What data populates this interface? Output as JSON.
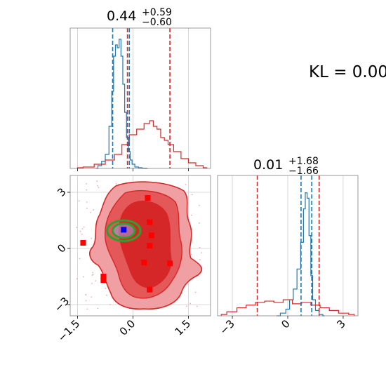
{
  "annotation": {
    "kl_text": "KL = 0.00"
  },
  "colors": {
    "blue": "#1f77b4",
    "red": "#d62728",
    "red_fill_light": "#f0a0a2",
    "red_fill_mid": "#e4585a",
    "red_fill_dark": "#d62728",
    "green": "#2ca02c",
    "marker_red": "#ff0000",
    "marker_blue": "#0000ff",
    "grid": "#cccccc"
  },
  "chart_data": [
    {
      "panel": "marginal-param-1",
      "type": "line",
      "title": {
        "value": "0.44",
        "plus": "+0.59",
        "minus": "−0.60"
      },
      "xlim": [
        -1.7,
        2.1
      ],
      "series": [
        {
          "color": "blue",
          "x": [
            -1.0,
            -0.9,
            -0.8,
            -0.7,
            -0.6,
            -0.55,
            -0.5,
            -0.45,
            -0.4,
            -0.35,
            -0.3,
            -0.25,
            -0.2,
            -0.15,
            -0.1,
            -0.05,
            0.0,
            0.1,
            0.2,
            0.3,
            0.4
          ],
          "y": [
            0,
            0.02,
            0.05,
            0.1,
            0.3,
            0.55,
            0.8,
            0.88,
            0.86,
            0.92,
            0.8,
            0.6,
            0.4,
            0.22,
            0.12,
            0.06,
            0.03,
            0.01,
            0.005,
            0.002,
            0
          ]
        },
        {
          "color": "red",
          "x": [
            -1.5,
            -1.2,
            -0.9,
            -0.6,
            -0.4,
            -0.2,
            0.0,
            0.2,
            0.4,
            0.5,
            0.6,
            0.7,
            0.8,
            0.9,
            1.0,
            1.2,
            1.4,
            1.6,
            1.8,
            2.0
          ],
          "y": [
            0.005,
            0.01,
            0.03,
            0.06,
            0.1,
            0.17,
            0.24,
            0.28,
            0.32,
            0.34,
            0.3,
            0.28,
            0.22,
            0.2,
            0.17,
            0.12,
            0.07,
            0.04,
            0.02,
            0.005
          ]
        }
      ],
      "vlines": [
        {
          "color": "blue",
          "x": -0.55
        },
        {
          "color": "blue",
          "x": -0.1
        },
        {
          "color": "red",
          "x": -0.15
        },
        {
          "color": "red",
          "x": 1.0
        }
      ]
    },
    {
      "panel": "marginal-param-2",
      "type": "line",
      "title": {
        "value": "0.01",
        "plus": "+1.68",
        "minus": "−1.66"
      },
      "xlim": [
        -3.8,
        3.8
      ],
      "xticks": [
        -3,
        0,
        3
      ],
      "xtick_labels": [
        "−3",
        "0",
        "3"
      ],
      "series": [
        {
          "color": "blue",
          "x": [
            -0.6,
            -0.2,
            0.0,
            0.2,
            0.4,
            0.6,
            0.8,
            0.9,
            1.0,
            1.1,
            1.2,
            1.3,
            1.4,
            1.6,
            1.8,
            2.0
          ],
          "y": [
            0,
            0.02,
            0.05,
            0.12,
            0.2,
            0.35,
            0.55,
            0.8,
            0.92,
            0.88,
            0.6,
            0.3,
            0.12,
            0.04,
            0.01,
            0
          ]
        },
        {
          "color": "red",
          "x": [
            -3.6,
            -3.0,
            -2.5,
            -2.0,
            -1.5,
            -1.0,
            -0.5,
            0.0,
            0.5,
            1.0,
            1.5,
            2.0,
            2.5,
            3.0,
            3.6
          ],
          "y": [
            0.01,
            0.03,
            0.06,
            0.08,
            0.1,
            0.11,
            0.1,
            0.12,
            0.09,
            0.1,
            0.08,
            0.06,
            0.04,
            0.02,
            0.01
          ]
        }
      ],
      "vlines": [
        {
          "color": "blue",
          "x": 0.72
        },
        {
          "color": "blue",
          "x": 1.3
        },
        {
          "color": "red",
          "x": -1.65
        },
        {
          "color": "red",
          "x": 1.7
        }
      ]
    },
    {
      "panel": "joint",
      "type": "scatter",
      "xlim": [
        -1.7,
        2.1
      ],
      "ylim": [
        -3.6,
        3.9
      ],
      "xticks": [
        -1.5,
        0.0,
        1.5
      ],
      "xtick_labels": [
        "−1.5",
        "0.0",
        "1.5"
      ],
      "yticks": [
        -3,
        0,
        3
      ],
      "ytick_labels": [
        "−3",
        "0",
        "3"
      ],
      "red_markers": [
        [
          0.4,
          2.7
        ],
        [
          0.45,
          1.4
        ],
        [
          0.5,
          0.7
        ],
        [
          0.45,
          0.15
        ],
        [
          0.3,
          -0.75
        ],
        [
          1.0,
          -0.8
        ],
        [
          -1.35,
          0.3
        ],
        [
          -0.8,
          -1.5
        ],
        [
          -0.8,
          -1.7
        ],
        [
          0.45,
          -2.2
        ]
      ],
      "blue_marker": [
        -0.25,
        1.0
      ],
      "green_contours": [
        {
          "cx": -0.25,
          "cy": 0.95,
          "rx": 0.45,
          "ry": 0.55
        },
        {
          "cx": -0.25,
          "cy": 0.95,
          "rx": 0.3,
          "ry": 0.38
        }
      ]
    }
  ]
}
